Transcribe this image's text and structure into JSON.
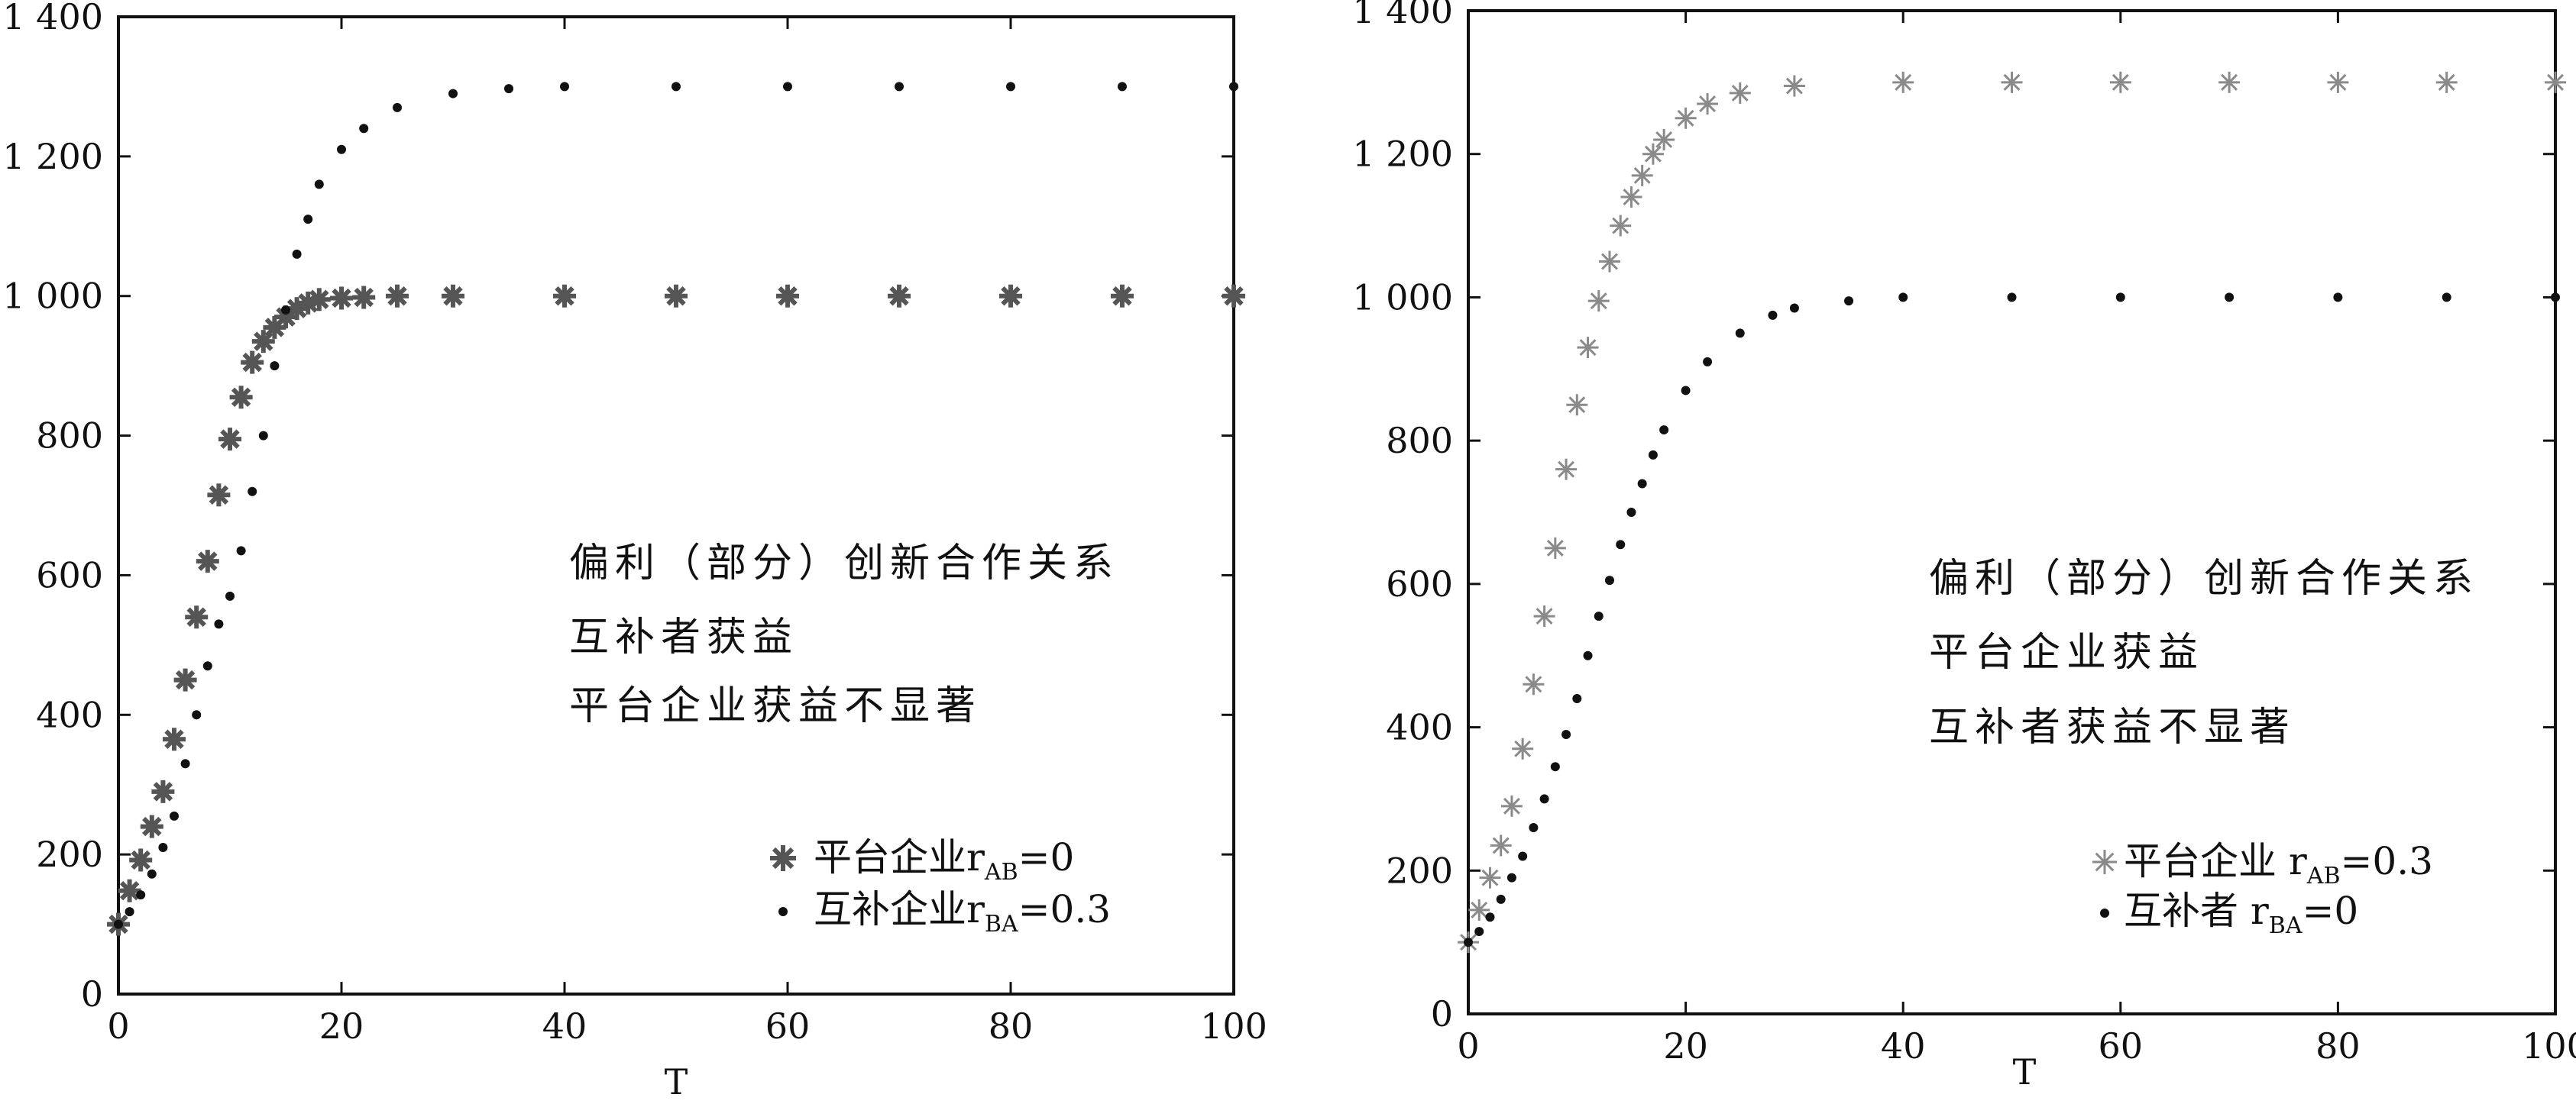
{
  "chart_data": [
    {
      "type": "scatter",
      "xlabel": "T",
      "ylabel": "",
      "xlim": [
        0,
        100
      ],
      "ylim": [
        0,
        1400
      ],
      "xticks": [
        0,
        20,
        40,
        60,
        80,
        100
      ],
      "yticks": [
        0,
        200,
        400,
        600,
        800,
        1000,
        1200,
        1400
      ],
      "ytick_labels": [
        "0",
        "200",
        "400",
        "600",
        "800",
        "1 000",
        "1 200",
        "1 400"
      ],
      "grid": false,
      "annotations": [
        "偏利（部分）创新合作关系",
        "互补者获益",
        "平台企业获益不显著"
      ],
      "legend_position": "lower-right",
      "series": [
        {
          "name": "平台企业",
          "legend": {
            "main": "平台企业r",
            "sub": "AB",
            "tail": "=0"
          },
          "marker": "asterisk-bold",
          "color": "#555555",
          "x": [
            0,
            1,
            2,
            3,
            4,
            5,
            6,
            7,
            8,
            9,
            10,
            11,
            12,
            13,
            14,
            15,
            16,
            17,
            18,
            20,
            22,
            25,
            30,
            40,
            50,
            60,
            70,
            80,
            90,
            100
          ],
          "y": [
            100,
            148,
            192,
            240,
            290,
            365,
            450,
            540,
            620,
            715,
            795,
            855,
            905,
            935,
            955,
            970,
            982,
            990,
            995,
            997,
            998,
            1000,
            1000,
            1000,
            1000,
            1000,
            1000,
            1000,
            1000,
            1000
          ]
        },
        {
          "name": "互补企业",
          "legend": {
            "main": "互补企业r",
            "sub": "BA",
            "tail": "=0.3"
          },
          "marker": "dot",
          "color": "#111111",
          "x": [
            0,
            1,
            2,
            3,
            4,
            5,
            6,
            7,
            8,
            9,
            10,
            11,
            12,
            13,
            14,
            15,
            16,
            17,
            18,
            20,
            22,
            25,
            30,
            35,
            40,
            50,
            60,
            70,
            80,
            90,
            100
          ],
          "y": [
            100,
            118,
            142,
            172,
            210,
            255,
            330,
            400,
            470,
            530,
            570,
            635,
            720,
            800,
            900,
            980,
            1060,
            1110,
            1160,
            1210,
            1240,
            1270,
            1290,
            1297,
            1300,
            1300,
            1300,
            1300,
            1300,
            1300,
            1300
          ]
        }
      ]
    },
    {
      "type": "scatter",
      "xlabel": "T",
      "ylabel": "",
      "xlim": [
        0,
        100
      ],
      "ylim": [
        0,
        1400
      ],
      "xticks": [
        0,
        20,
        40,
        60,
        80,
        100
      ],
      "yticks": [
        0,
        200,
        400,
        600,
        800,
        1000,
        1200,
        1400
      ],
      "ytick_labels": [
        "0",
        "200",
        "400",
        "600",
        "800",
        "1 000",
        "1 200",
        "1 400"
      ],
      "grid": false,
      "annotations": [
        "偏利（部分）创新合作关系",
        "平台企业获益",
        "互补者获益不显著"
      ],
      "legend_position": "lower-right",
      "series": [
        {
          "name": "平台企业",
          "legend": {
            "main": "平台企业 r",
            "sub": "AB",
            "tail": "=0.3"
          },
          "marker": "asterisk-light",
          "color": "#8a8a8a",
          "x": [
            0,
            1,
            2,
            3,
            4,
            5,
            6,
            7,
            8,
            9,
            10,
            11,
            12,
            13,
            14,
            15,
            16,
            17,
            18,
            20,
            22,
            25,
            30,
            40,
            50,
            60,
            70,
            80,
            90,
            100
          ],
          "y": [
            100,
            145,
            190,
            235,
            290,
            370,
            460,
            555,
            650,
            760,
            850,
            930,
            995,
            1050,
            1100,
            1140,
            1170,
            1200,
            1220,
            1250,
            1270,
            1285,
            1295,
            1300,
            1300,
            1300,
            1300,
            1300,
            1300,
            1300
          ]
        },
        {
          "name": "互补者",
          "legend": {
            "main": "互补者 r",
            "sub": "BA",
            "tail": "=0"
          },
          "marker": "dot",
          "color": "#111111",
          "x": [
            0,
            1,
            2,
            3,
            4,
            5,
            6,
            7,
            8,
            9,
            10,
            11,
            12,
            13,
            14,
            15,
            16,
            17,
            18,
            20,
            22,
            25,
            28,
            30,
            35,
            40,
            50,
            60,
            70,
            80,
            90,
            100
          ],
          "y": [
            100,
            115,
            135,
            160,
            190,
            220,
            260,
            300,
            345,
            390,
            440,
            500,
            555,
            605,
            655,
            700,
            740,
            780,
            815,
            870,
            910,
            950,
            975,
            985,
            995,
            1000,
            1000,
            1000,
            1000,
            1000,
            1000,
            1000
          ]
        }
      ]
    }
  ]
}
